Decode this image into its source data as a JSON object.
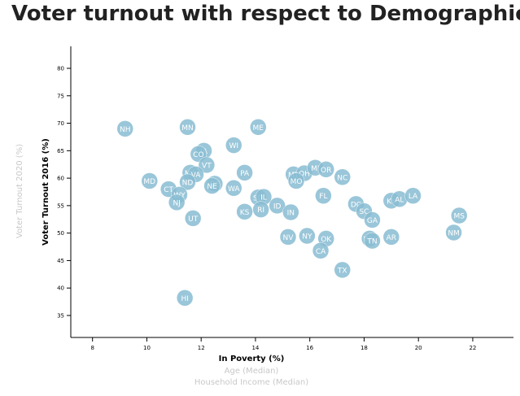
{
  "chart_data": {
    "type": "scatter",
    "title": "Voter turnout with respect to Demographics",
    "xlabel": "In Poverty (%)",
    "ylabel": "Voter Turnout 2016 (%)",
    "alt_xlabels": [
      "Age (Median)",
      "Household Income (Median)"
    ],
    "alt_ylabels": [
      "Voter Turnout 2020 (%)"
    ],
    "xlim": [
      7.2,
      23.5
    ],
    "ylim": [
      31,
      84
    ],
    "xticks": [
      8,
      10,
      12,
      14,
      16,
      18,
      20,
      22
    ],
    "yticks": [
      35,
      40,
      45,
      50,
      55,
      60,
      65,
      70,
      75,
      80
    ],
    "point_color": "#89bdd3",
    "points": [
      {
        "abbr": "NH",
        "x": 9.2,
        "y": 69.0
      },
      {
        "abbr": "MN",
        "x": 11.5,
        "y": 69.3
      },
      {
        "abbr": "ME",
        "x": 14.1,
        "y": 69.3
      },
      {
        "abbr": "WI",
        "x": 13.2,
        "y": 66.0
      },
      {
        "abbr": "IA",
        "x": 12.1,
        "y": 65.0
      },
      {
        "abbr": "CO",
        "x": 11.9,
        "y": 64.4
      },
      {
        "abbr": "VT",
        "x": 12.2,
        "y": 62.4
      },
      {
        "abbr": "MA",
        "x": 11.6,
        "y": 61.0
      },
      {
        "abbr": "VA",
        "x": 11.8,
        "y": 60.7
      },
      {
        "abbr": "ND",
        "x": 11.5,
        "y": 59.3
      },
      {
        "abbr": "DE",
        "x": 12.5,
        "y": 59.0
      },
      {
        "abbr": "NE",
        "x": 12.4,
        "y": 58.6
      },
      {
        "abbr": "MD",
        "x": 10.1,
        "y": 59.5
      },
      {
        "abbr": "CT",
        "x": 10.8,
        "y": 58.0
      },
      {
        "abbr": "WY",
        "x": 11.2,
        "y": 57.0
      },
      {
        "abbr": "NJ",
        "x": 11.1,
        "y": 55.6
      },
      {
        "abbr": "UT",
        "x": 11.7,
        "y": 52.7
      },
      {
        "abbr": "PA",
        "x": 13.6,
        "y": 61.0
      },
      {
        "abbr": "WA",
        "x": 13.2,
        "y": 58.2
      },
      {
        "abbr": "MT",
        "x": 15.4,
        "y": 60.7
      },
      {
        "abbr": "OH",
        "x": 15.8,
        "y": 60.9
      },
      {
        "abbr": "MI",
        "x": 16.2,
        "y": 61.9
      },
      {
        "abbr": "OR",
        "x": 16.6,
        "y": 61.6
      },
      {
        "abbr": "MO",
        "x": 15.5,
        "y": 59.5
      },
      {
        "abbr": "NC",
        "x": 17.2,
        "y": 60.2
      },
      {
        "abbr": "SD",
        "x": 14.1,
        "y": 56.5
      },
      {
        "abbr": "IL",
        "x": 14.3,
        "y": 56.6
      },
      {
        "abbr": "ID",
        "x": 14.8,
        "y": 55.0
      },
      {
        "abbr": "KS",
        "x": 13.6,
        "y": 53.9
      },
      {
        "abbr": "RI",
        "x": 14.2,
        "y": 54.3
      },
      {
        "abbr": "IN",
        "x": 15.3,
        "y": 53.8
      },
      {
        "abbr": "FL",
        "x": 16.5,
        "y": 56.8
      },
      {
        "abbr": "DC",
        "x": 17.7,
        "y": 55.3
      },
      {
        "abbr": "SC",
        "x": 18.0,
        "y": 54.0
      },
      {
        "abbr": "GA",
        "x": 18.3,
        "y": 52.4
      },
      {
        "abbr": "KY",
        "x": 19.0,
        "y": 55.9
      },
      {
        "abbr": "AL",
        "x": 19.3,
        "y": 56.2
      },
      {
        "abbr": "LA",
        "x": 19.8,
        "y": 56.8
      },
      {
        "abbr": "MS",
        "x": 21.5,
        "y": 53.2
      },
      {
        "abbr": "NM",
        "x": 21.3,
        "y": 50.1
      },
      {
        "abbr": "NV",
        "x": 15.2,
        "y": 49.3
      },
      {
        "abbr": "NY",
        "x": 15.9,
        "y": 49.5
      },
      {
        "abbr": "OK",
        "x": 16.6,
        "y": 49.0
      },
      {
        "abbr": "CA",
        "x": 16.4,
        "y": 46.8
      },
      {
        "abbr": "WV",
        "x": 18.2,
        "y": 49.0
      },
      {
        "abbr": "TN",
        "x": 18.3,
        "y": 48.6
      },
      {
        "abbr": "AR",
        "x": 19.0,
        "y": 49.3
      },
      {
        "abbr": "TX",
        "x": 17.2,
        "y": 43.3
      },
      {
        "abbr": "HI",
        "x": 11.4,
        "y": 38.2
      }
    ]
  }
}
